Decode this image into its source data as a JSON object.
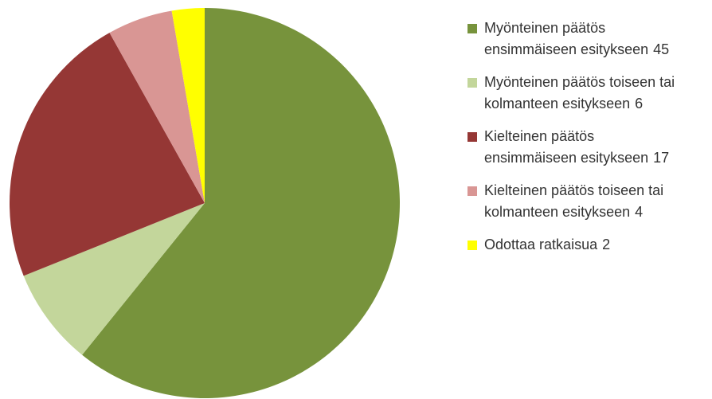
{
  "chart_data": {
    "type": "pie",
    "categories": [
      "Myönteinen päätös ensimmäiseen esitykseen",
      "Myönteinen päätös toiseen tai kolmanteen esitykseen",
      "Kielteinen päätös ensimmäiseen esitykseen",
      "Kielteinen päätös toiseen tai kolmanteen esitykseen",
      "Odottaa ratkaisua"
    ],
    "values": [
      45,
      6,
      17,
      4,
      2
    ],
    "colors": [
      "#77933c",
      "#c3d69b",
      "#953735",
      "#d99694",
      "#ffff00"
    ],
    "legend": "right"
  }
}
